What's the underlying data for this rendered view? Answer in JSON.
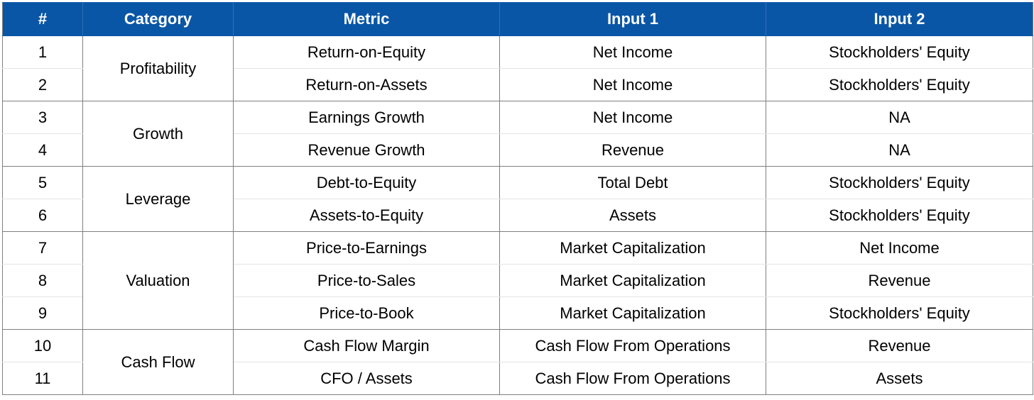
{
  "table": {
    "headers": [
      "#",
      "Category",
      "Metric",
      "Input 1",
      "Input 2"
    ],
    "groups": [
      {
        "category": "Profitability",
        "rows": [
          {
            "num": "1",
            "metric": "Return-on-Equity",
            "input1": "Net Income",
            "input2": "Stockholders' Equity"
          },
          {
            "num": "2",
            "metric": "Return-on-Assets",
            "input1": "Net Income",
            "input2": "Stockholders' Equity"
          }
        ]
      },
      {
        "category": "Growth",
        "rows": [
          {
            "num": "3",
            "metric": "Earnings Growth",
            "input1": "Net Income",
            "input2": "NA"
          },
          {
            "num": "4",
            "metric": "Revenue Growth",
            "input1": "Revenue",
            "input2": "NA"
          }
        ]
      },
      {
        "category": "Leverage",
        "rows": [
          {
            "num": "5",
            "metric": "Debt-to-Equity",
            "input1": "Total Debt",
            "input2": "Stockholders' Equity"
          },
          {
            "num": "6",
            "metric": "Assets-to-Equity",
            "input1": "Assets",
            "input2": "Stockholders' Equity"
          }
        ]
      },
      {
        "category": "Valuation",
        "rows": [
          {
            "num": "7",
            "metric": "Price-to-Earnings",
            "input1": "Market Capitalization",
            "input2": "Net Income"
          },
          {
            "num": "8",
            "metric": "Price-to-Sales",
            "input1": "Market Capitalization",
            "input2": "Revenue"
          },
          {
            "num": "9",
            "metric": "Price-to-Book",
            "input1": "Market Capitalization",
            "input2": "Stockholders' Equity"
          }
        ]
      },
      {
        "category": "Cash Flow",
        "rows": [
          {
            "num": "10",
            "metric": "Cash Flow Margin",
            "input1": "Cash Flow From Operations",
            "input2": "Revenue"
          },
          {
            "num": "11",
            "metric": "CFO / Assets",
            "input1": "Cash Flow From Operations",
            "input2": "Assets"
          }
        ]
      }
    ]
  },
  "colors": {
    "header_bg": "#0a56a6",
    "header_text": "#ffffff",
    "grid_major": "#7f7f7f",
    "grid_minor": "#e4e4e4"
  }
}
